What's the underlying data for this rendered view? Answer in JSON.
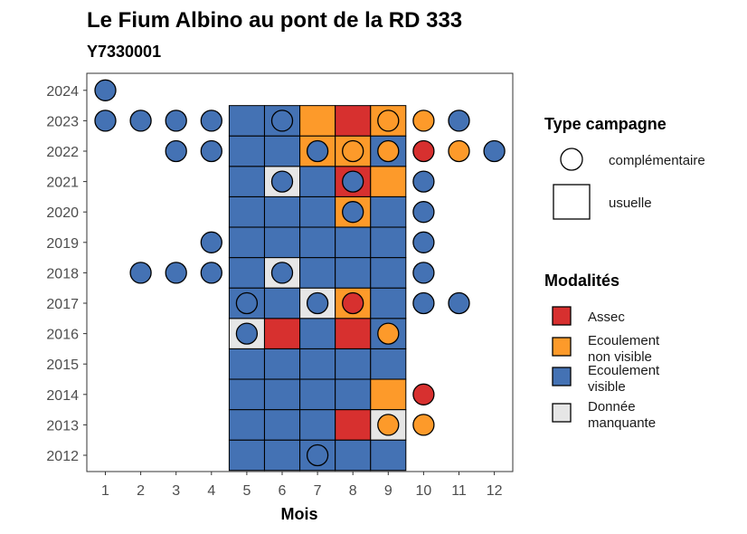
{
  "chart_data": {
    "type": "heatmap",
    "title": "Le Fium Albino au pont de la RD 333",
    "subtitle": "Y7330001",
    "xlabel": "Mois",
    "ylabel": "",
    "x_ticks": [
      1,
      2,
      3,
      4,
      5,
      6,
      7,
      8,
      9,
      10,
      11,
      12
    ],
    "y_ticks": [
      2012,
      2013,
      2014,
      2015,
      2016,
      2017,
      2018,
      2019,
      2020,
      2021,
      2022,
      2023,
      2024
    ],
    "colors": {
      "assec": "#d7302f",
      "ecoulement_non_visible": "#fd9a2a",
      "ecoulement_visible": "#4472b4",
      "donnee_manquante": "#e6e6e6"
    },
    "legend_type": {
      "title": "Type campagne",
      "items": [
        {
          "key": "complementaire",
          "label": "complémentaire",
          "shape": "circle"
        },
        {
          "key": "usuelle",
          "label": "usuelle",
          "shape": "square"
        }
      ]
    },
    "legend_modalites": {
      "title": "Modalités",
      "items": [
        {
          "key": "A",
          "lines": [
            "Assec"
          ]
        },
        {
          "key": "N",
          "lines": [
            "Ecoulement",
            "non visible"
          ]
        },
        {
          "key": "V",
          "lines": [
            "Ecoulement",
            "visible"
          ]
        },
        {
          "key": "M",
          "lines": [
            "Donnée",
            "manquante"
          ]
        }
      ]
    },
    "usuelle": [
      {
        "year": 2012,
        "values": {
          "5": "V",
          "6": "V",
          "7": "V",
          "8": "V",
          "9": "V"
        }
      },
      {
        "year": 2013,
        "values": {
          "5": "V",
          "6": "V",
          "7": "V",
          "8": "A",
          "9": "M"
        }
      },
      {
        "year": 2014,
        "values": {
          "5": "V",
          "6": "V",
          "7": "V",
          "8": "V",
          "9": "N"
        }
      },
      {
        "year": 2015,
        "values": {
          "5": "V",
          "6": "V",
          "7": "V",
          "8": "V",
          "9": "V"
        }
      },
      {
        "year": 2016,
        "values": {
          "5": "M",
          "6": "A",
          "7": "V",
          "8": "A",
          "9": "V"
        }
      },
      {
        "year": 2017,
        "values": {
          "5": "V",
          "6": "V",
          "7": "M",
          "8": "N",
          "9": "V"
        }
      },
      {
        "year": 2018,
        "values": {
          "5": "V",
          "6": "M",
          "7": "V",
          "8": "V",
          "9": "V"
        }
      },
      {
        "year": 2019,
        "values": {
          "5": "V",
          "6": "V",
          "7": "V",
          "8": "V",
          "9": "V"
        }
      },
      {
        "year": 2020,
        "values": {
          "5": "V",
          "6": "V",
          "7": "V",
          "8": "N",
          "9": "V"
        }
      },
      {
        "year": 2021,
        "values": {
          "5": "V",
          "6": "M",
          "7": "V",
          "8": "A",
          "9": "N"
        }
      },
      {
        "year": 2022,
        "values": {
          "5": "V",
          "6": "V",
          "7": "N",
          "8": "N",
          "9": "V"
        }
      },
      {
        "year": 2023,
        "values": {
          "5": "V",
          "6": "V",
          "7": "N",
          "8": "A",
          "9": "N"
        }
      }
    ],
    "complementaire": [
      {
        "year": 2024,
        "month": 1,
        "value": "V"
      },
      {
        "year": 2023,
        "month": 1,
        "value": "V"
      },
      {
        "year": 2023,
        "month": 2,
        "value": "V"
      },
      {
        "year": 2023,
        "month": 3,
        "value": "V"
      },
      {
        "year": 2023,
        "month": 4,
        "value": "V"
      },
      {
        "year": 2023,
        "month": 6,
        "value": "V"
      },
      {
        "year": 2023,
        "month": 9,
        "value": "N"
      },
      {
        "year": 2023,
        "month": 10,
        "value": "N"
      },
      {
        "year": 2023,
        "month": 11,
        "value": "V"
      },
      {
        "year": 2022,
        "month": 3,
        "value": "V"
      },
      {
        "year": 2022,
        "month": 4,
        "value": "V"
      },
      {
        "year": 2022,
        "month": 7,
        "value": "V"
      },
      {
        "year": 2022,
        "month": 8,
        "value": "N"
      },
      {
        "year": 2022,
        "month": 9,
        "value": "N"
      },
      {
        "year": 2022,
        "month": 10,
        "value": "A"
      },
      {
        "year": 2022,
        "month": 11,
        "value": "N"
      },
      {
        "year": 2022,
        "month": 12,
        "value": "V"
      },
      {
        "year": 2021,
        "month": 6,
        "value": "V"
      },
      {
        "year": 2021,
        "month": 8,
        "value": "V"
      },
      {
        "year": 2021,
        "month": 10,
        "value": "V"
      },
      {
        "year": 2020,
        "month": 8,
        "value": "V"
      },
      {
        "year": 2020,
        "month": 10,
        "value": "V"
      },
      {
        "year": 2019,
        "month": 4,
        "value": "V"
      },
      {
        "year": 2019,
        "month": 10,
        "value": "V"
      },
      {
        "year": 2018,
        "month": 2,
        "value": "V"
      },
      {
        "year": 2018,
        "month": 3,
        "value": "V"
      },
      {
        "year": 2018,
        "month": 4,
        "value": "V"
      },
      {
        "year": 2018,
        "month": 6,
        "value": "V"
      },
      {
        "year": 2018,
        "month": 10,
        "value": "V"
      },
      {
        "year": 2017,
        "month": 5,
        "value": "V"
      },
      {
        "year": 2017,
        "month": 7,
        "value": "V"
      },
      {
        "year": 2017,
        "month": 8,
        "value": "A"
      },
      {
        "year": 2017,
        "month": 10,
        "value": "V"
      },
      {
        "year": 2017,
        "month": 11,
        "value": "V"
      },
      {
        "year": 2016,
        "month": 5,
        "value": "V"
      },
      {
        "year": 2016,
        "month": 9,
        "value": "N"
      },
      {
        "year": 2014,
        "month": 10,
        "value": "A"
      },
      {
        "year": 2013,
        "month": 9,
        "value": "N"
      },
      {
        "year": 2013,
        "month": 10,
        "value": "N"
      },
      {
        "year": 2012,
        "month": 7,
        "value": "V"
      }
    ]
  }
}
